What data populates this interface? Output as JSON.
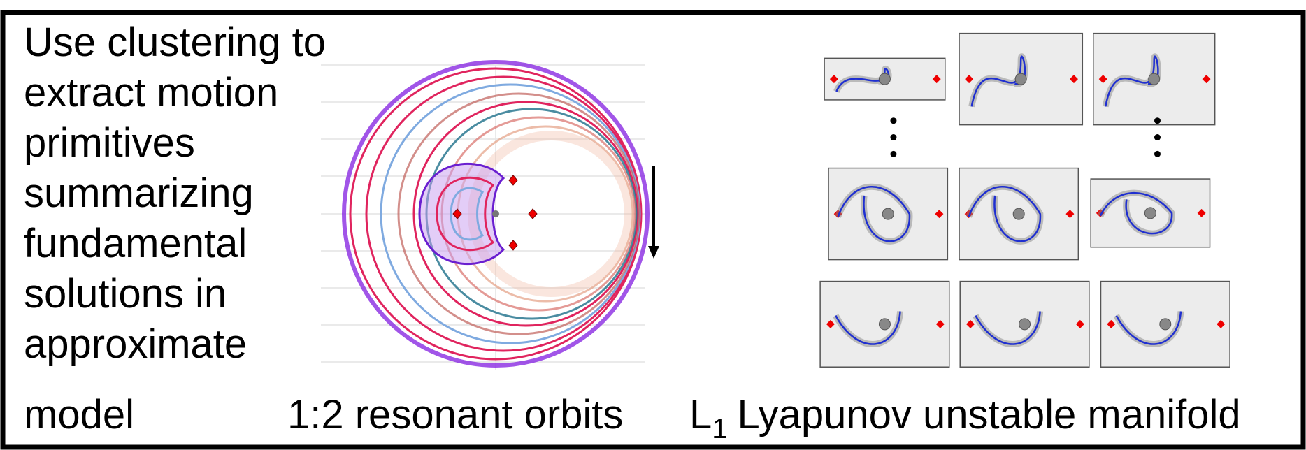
{
  "text": {
    "lines": [
      "Use clustering to",
      "extract motion",
      "primitives",
      "summarizing",
      "fundamental",
      "solutions in",
      "approximate",
      "model"
    ]
  },
  "captions": {
    "orbits": "1:2 resonant orbits",
    "manifold": {
      "prefix": "L",
      "subscript": "1",
      "rest": "Lyapunov unstable manifold"
    }
  }
}
